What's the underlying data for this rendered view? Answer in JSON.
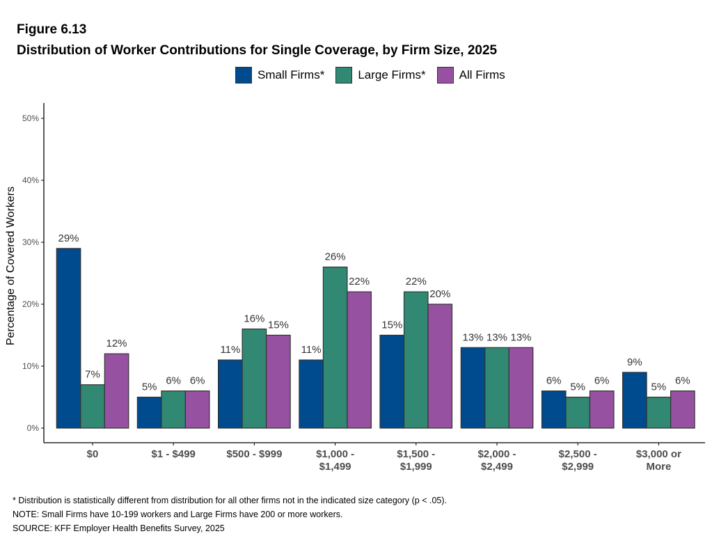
{
  "figure": {
    "label": "Figure 6.13",
    "title": "Distribution of Worker Contributions for Single Coverage, by Firm Size, 2025"
  },
  "colors": {
    "small": "#004b8d",
    "large": "#318873",
    "all": "#9751a1",
    "axis": "#000000",
    "tick_text": "#4d4d4d",
    "label_text": "#333333"
  },
  "footnotes": [
    "* Distribution is statistically different from distribution for all other firms not in the indicated size category (p < .05).",
    "NOTE: Small Firms have 10-199 workers and Large Firms have 200 or more workers.",
    "SOURCE: KFF Employer Health Benefits Survey, 2025"
  ],
  "chart_data": {
    "type": "bar",
    "title": "Distribution of Worker Contributions for Single Coverage, by Firm Size, 2025",
    "xlabel": "",
    "ylabel": "Percentage of Covered Workers",
    "ylim": [
      0,
      50
    ],
    "yticks": [
      0,
      10,
      20,
      30,
      40,
      50
    ],
    "ytick_labels": [
      "0%",
      "10%",
      "20%",
      "30%",
      "40%",
      "50%"
    ],
    "grid": false,
    "legend_position": "top",
    "categories": [
      [
        "$0"
      ],
      [
        "$1 - $499"
      ],
      [
        "$500 - $999"
      ],
      [
        "$1,000 -",
        "$1,499"
      ],
      [
        "$1,500 -",
        "$1,999"
      ],
      [
        "$2,000 -",
        "$2,499"
      ],
      [
        "$2,500 -",
        "$2,999"
      ],
      [
        "$3,000 or",
        "More"
      ]
    ],
    "series": [
      {
        "name": "Small Firms*",
        "key": "small",
        "values": [
          29,
          5,
          11,
          11,
          15,
          13,
          6,
          9
        ],
        "labels": [
          "29%",
          "5%",
          "11%",
          "11%",
          "15%",
          "13%",
          "6%",
          "9%"
        ]
      },
      {
        "name": "Large Firms*",
        "key": "large",
        "values": [
          7,
          6,
          16,
          26,
          22,
          13,
          5,
          5
        ],
        "labels": [
          "7%",
          "6%",
          "16%",
          "26%",
          "22%",
          "13%",
          "5%",
          "5%"
        ]
      },
      {
        "name": "All Firms",
        "key": "all",
        "values": [
          12,
          6,
          15,
          22,
          20,
          13,
          6,
          6
        ],
        "labels": [
          "12%",
          "6%",
          "15%",
          "22%",
          "20%",
          "13%",
          "6%",
          "6%"
        ]
      }
    ]
  }
}
